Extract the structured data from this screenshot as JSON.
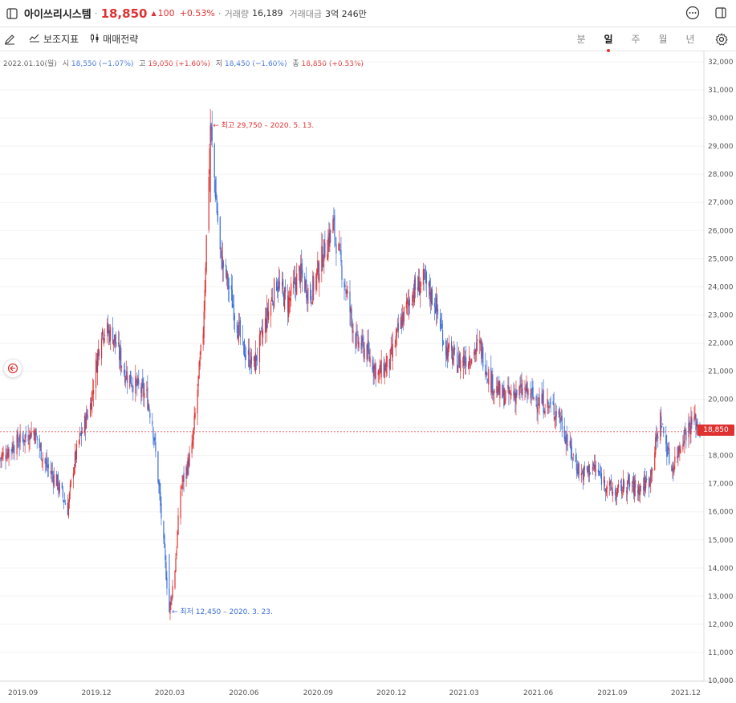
{
  "header": {
    "stock_name": "아이쓰리시스템",
    "price": "18,850",
    "change": "100",
    "change_pct": "+0.53%",
    "volume_label": "거래량",
    "volume": "16,189",
    "amount_label": "거래대금",
    "amount": "3억 246만"
  },
  "toolbar": {
    "indicators_label": "보조지표",
    "strategy_label": "매매전략",
    "periods": [
      "분",
      "일",
      "주",
      "월",
      "년"
    ],
    "active_period": "일"
  },
  "ohlc": {
    "date": "2022.01.10(월)",
    "open_label": "시",
    "open": "18,550 (−1.07%)",
    "high_label": "고",
    "high": "19,050 (+1.60%)",
    "low_label": "저",
    "low": "18,450 (−1.60%)",
    "close_label": "종",
    "close": "18,850 (+0.53%)"
  },
  "annotations": {
    "high": "최고 29,750 – 2020. 5. 13.",
    "low": "최저 12,450 – 2020. 3. 23."
  },
  "current_price_tag": "18,850",
  "colors": {
    "up": "#e03131",
    "down": "#3b6fd8",
    "grid": "#f0f0f0"
  },
  "chart_data": {
    "type": "candlestick",
    "y_axis_ticks": [
      "32,000",
      "31,000",
      "30,000",
      "29,000",
      "28,000",
      "27,000",
      "26,000",
      "25,000",
      "24,000",
      "23,000",
      "22,000",
      "21,000",
      "20,000",
      "19,000",
      "18,000",
      "17,000",
      "16,000",
      "15,000",
      "14,000",
      "13,000",
      "12,000",
      "11,000",
      "10,000"
    ],
    "ylim": [
      10000,
      32000
    ],
    "x_axis_ticks": [
      "2019.09",
      "2019.12",
      "2020.03",
      "2020.06",
      "2020.09",
      "2020.12",
      "2021.03",
      "2021.06",
      "2021.09",
      "2021.12"
    ],
    "current_price": 18850,
    "price_path": [
      [
        "2019-08-26",
        17900
      ],
      [
        "2019-09-09",
        18300
      ],
      [
        "2019-09-23",
        18600
      ],
      [
        "2019-10-07",
        18900
      ],
      [
        "2019-10-21",
        17700
      ],
      [
        "2019-11-04",
        17100
      ],
      [
        "2019-11-18",
        16100
      ],
      [
        "2019-11-25",
        17600
      ],
      [
        "2019-12-02",
        18500
      ],
      [
        "2019-12-16",
        19800
      ],
      [
        "2019-12-30",
        22500
      ],
      [
        "2020-01-13",
        22300
      ],
      [
        "2020-01-27",
        21000
      ],
      [
        "2020-02-10",
        20500
      ],
      [
        "2020-02-24",
        20100
      ],
      [
        "2020-03-02",
        19200
      ],
      [
        "2020-03-09",
        17200
      ],
      [
        "2020-03-16",
        14800
      ],
      [
        "2020-03-23",
        12450
      ],
      [
        "2020-03-30",
        14000
      ],
      [
        "2020-04-06",
        16800
      ],
      [
        "2020-04-20",
        18200
      ],
      [
        "2020-05-04",
        22500
      ],
      [
        "2020-05-13",
        29750
      ],
      [
        "2020-05-25",
        25200
      ],
      [
        "2020-06-08",
        23600
      ],
      [
        "2020-06-22",
        21800
      ],
      [
        "2020-07-06",
        21200
      ],
      [
        "2020-07-20",
        22700
      ],
      [
        "2020-08-03",
        24200
      ],
      [
        "2020-08-17",
        23400
      ],
      [
        "2020-08-31",
        24500
      ],
      [
        "2020-09-14",
        23700
      ],
      [
        "2020-09-28",
        25000
      ],
      [
        "2020-10-12",
        26200
      ],
      [
        "2020-10-26",
        24200
      ],
      [
        "2020-11-09",
        22100
      ],
      [
        "2020-11-23",
        21700
      ],
      [
        "2020-12-07",
        20900
      ],
      [
        "2020-12-21",
        21300
      ],
      [
        "2021-01-04",
        22700
      ],
      [
        "2021-01-18",
        23800
      ],
      [
        "2021-02-01",
        24200
      ],
      [
        "2021-02-15",
        23500
      ],
      [
        "2021-03-01",
        21800
      ],
      [
        "2021-03-15",
        21300
      ],
      [
        "2021-03-29",
        21500
      ],
      [
        "2021-04-12",
        21900
      ],
      [
        "2021-04-26",
        20600
      ],
      [
        "2021-05-10",
        20100
      ],
      [
        "2021-05-24",
        20200
      ],
      [
        "2021-06-07",
        20300
      ],
      [
        "2021-06-21",
        20000
      ],
      [
        "2021-07-05",
        19800
      ],
      [
        "2021-07-19",
        19500
      ],
      [
        "2021-08-02",
        18200
      ],
      [
        "2021-08-16",
        17300
      ],
      [
        "2021-08-30",
        17600
      ],
      [
        "2021-09-13",
        17100
      ],
      [
        "2021-09-27",
        16600
      ],
      [
        "2021-10-11",
        17000
      ],
      [
        "2021-10-25",
        16800
      ],
      [
        "2021-11-08",
        17100
      ],
      [
        "2021-11-22",
        19300
      ],
      [
        "2021-12-06",
        17500
      ],
      [
        "2021-12-20",
        18700
      ],
      [
        "2022-01-03",
        19300
      ],
      [
        "2022-01-10",
        18850
      ]
    ]
  }
}
